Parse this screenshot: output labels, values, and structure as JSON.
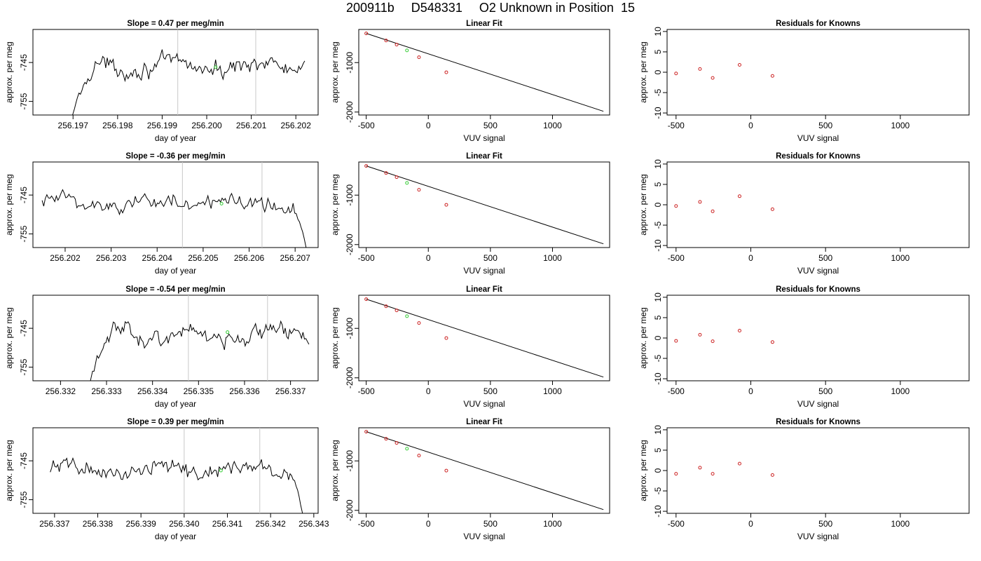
{
  "page_title": {
    "run": "200911b",
    "sample": "D548331",
    "description": "O2 Unknown in Position  15"
  },
  "colors": {
    "trace": "#000000",
    "guide_lines": "#c8c8c8",
    "known_points": "#cc2222",
    "unknown_point": "#33cc33",
    "frame": "#000000"
  },
  "chart_data": [
    {
      "type": "line",
      "panel": "time-series",
      "row": 1,
      "title": "Slope =  0.47  per meg/min",
      "xlabel": "day of year",
      "ylabel": "approx. per meg",
      "xlim": [
        256.1961,
        256.2025
      ],
      "ylim": [
        -758.5,
        -736.5
      ],
      "xticks": [
        256.197,
        256.198,
        256.199,
        256.2,
        256.201,
        256.202
      ],
      "xtick_labels": [
        "256.197",
        "256.198",
        "256.199",
        "256.200",
        "256.201",
        "256.202"
      ],
      "yticks": [
        -755,
        -745
      ],
      "ytick_labels": [
        "-755",
        "-745"
      ],
      "x_start": 256.1969,
      "x_end": 256.2022,
      "n_points": 160,
      "level": -746.0,
      "noise": 2.2,
      "start_dip": -764,
      "guide_lines_x": [
        256.19935,
        256.2011
      ],
      "unknown_point": {
        "x": 256.2002,
        "y": -746.2
      },
      "grid": false,
      "legend": "none"
    },
    {
      "type": "scatter",
      "panel": "linear-fit",
      "row": 1,
      "title": "Linear Fit",
      "xlabel": "VUV signal",
      "ylabel": "approx. per meg",
      "xlim": [
        -560,
        1460
      ],
      "ylim": [
        -2060,
        -330
      ],
      "xticks": [
        -500,
        0,
        500,
        1000
      ],
      "xtick_labels": [
        "-500",
        "0",
        "500",
        "1000"
      ],
      "yticks": [
        -2000,
        -1000
      ],
      "ytick_labels": [
        "-2000",
        "-1000"
      ],
      "known_x": [
        -500,
        -340,
        -255,
        -75,
        145
      ],
      "known_y": [
        -410,
        -553,
        -636,
        -892,
        -1196
      ],
      "unknown_point": {
        "x": -172,
        "y": -754
      },
      "fit_line": {
        "x": [
          -500,
          1410
        ],
        "y": [
          -410,
          -1985
        ]
      },
      "grid": false,
      "legend": "none"
    },
    {
      "type": "scatter",
      "panel": "residuals",
      "row": 1,
      "title": "Residuals for Knowns",
      "xlabel": "VUV signal",
      "ylabel": "approx. per meg",
      "xlim": [
        -560,
        1460
      ],
      "ylim": [
        -10.5,
        10.5
      ],
      "xticks": [
        -500,
        0,
        500,
        1000
      ],
      "xtick_labels": [
        "-500",
        "0",
        "500",
        "1000"
      ],
      "yticks": [
        -10,
        -5,
        0,
        5,
        10
      ],
      "ytick_labels": [
        "-10",
        "-5",
        "0",
        "5",
        "10"
      ],
      "x": [
        -500,
        -340,
        -255,
        -75,
        145
      ],
      "y": [
        -0.3,
        0.8,
        -1.4,
        1.8,
        -0.9
      ],
      "grid": false,
      "legend": "none"
    },
    {
      "type": "line",
      "panel": "time-series",
      "row": 2,
      "title": "Slope =  -0.36  per meg/min",
      "xlabel": "day of year",
      "ylabel": "approx. per meg",
      "xlim": [
        256.2013,
        256.2075
      ],
      "ylim": [
        -758.5,
        -736.5
      ],
      "xticks": [
        256.202,
        256.203,
        256.204,
        256.205,
        256.206,
        256.207
      ],
      "xtick_labels": [
        "256.202",
        "256.203",
        "256.204",
        "256.205",
        "256.206",
        "256.207"
      ],
      "yticks": [
        -755,
        -745
      ],
      "ytick_labels": [
        "-755",
        "-745"
      ],
      "x_start": 256.2015,
      "x_end": 256.2073,
      "n_points": 170,
      "level": -747.0,
      "noise": 2.3,
      "end_dip": -762,
      "guide_lines_x": [
        256.20455,
        256.20628
      ],
      "unknown_point": {
        "x": 256.2054,
        "y": -747.2
      },
      "grid": false,
      "legend": "none"
    },
    {
      "type": "scatter",
      "panel": "linear-fit",
      "row": 2,
      "title": "Linear Fit",
      "xlabel": "VUV signal",
      "ylabel": "approx. per meg",
      "xlim": [
        -560,
        1460
      ],
      "ylim": [
        -2060,
        -330
      ],
      "xticks": [
        -500,
        0,
        500,
        1000
      ],
      "xtick_labels": [
        "-500",
        "0",
        "500",
        "1000"
      ],
      "yticks": [
        -2000,
        -1000
      ],
      "ytick_labels": [
        "-2000",
        "-1000"
      ],
      "known_x": [
        -500,
        -340,
        -255,
        -75,
        145
      ],
      "known_y": [
        -410,
        -553,
        -636,
        -892,
        -1196
      ],
      "unknown_point": {
        "x": -172,
        "y": -754
      },
      "fit_line": {
        "x": [
          -500,
          1410
        ],
        "y": [
          -410,
          -1985
        ]
      },
      "grid": false,
      "legend": "none"
    },
    {
      "type": "scatter",
      "panel": "residuals",
      "row": 2,
      "title": "Residuals for Knowns",
      "xlabel": "VUV signal",
      "ylabel": "approx. per meg",
      "xlim": [
        -560,
        1460
      ],
      "ylim": [
        -10.5,
        10.5
      ],
      "xticks": [
        -500,
        0,
        500,
        1000
      ],
      "xtick_labels": [
        "-500",
        "0",
        "500",
        "1000"
      ],
      "yticks": [
        -10,
        -5,
        0,
        5,
        10
      ],
      "ytick_labels": [
        "-10",
        "-5",
        "0",
        "5",
        "10"
      ],
      "x": [
        -500,
        -340,
        -255,
        -75,
        145
      ],
      "y": [
        -0.3,
        0.7,
        -1.6,
        2.1,
        -1.1
      ],
      "grid": false,
      "legend": "none"
    },
    {
      "type": "line",
      "panel": "time-series",
      "row": 3,
      "title": "Slope =  -0.54  per meg/min",
      "xlabel": "day of year",
      "ylabel": "approx. per meg",
      "xlim": [
        256.3314,
        256.3376
      ],
      "ylim": [
        -758.5,
        -736.5
      ],
      "xticks": [
        256.332,
        256.333,
        256.334,
        256.335,
        256.336,
        256.337
      ],
      "xtick_labels": [
        "256.332",
        "256.333",
        "256.334",
        "256.335",
        "256.336",
        "256.337"
      ],
      "yticks": [
        -755,
        -745
      ],
      "ytick_labels": [
        "-755",
        "-745"
      ],
      "x_start": 256.3326,
      "x_end": 256.3374,
      "n_points": 150,
      "level": -746.5,
      "noise": 2.3,
      "start_dip": -762,
      "guide_lines_x": [
        256.33478,
        256.3365
      ],
      "unknown_point": {
        "x": 256.33563,
        "y": -746.0
      },
      "grid": false,
      "legend": "none"
    },
    {
      "type": "scatter",
      "panel": "linear-fit",
      "row": 3,
      "title": "Linear Fit",
      "xlabel": "VUV signal",
      "ylabel": "approx. per meg",
      "xlim": [
        -560,
        1460
      ],
      "ylim": [
        -2060,
        -330
      ],
      "xticks": [
        -500,
        0,
        500,
        1000
      ],
      "xtick_labels": [
        "-500",
        "0",
        "500",
        "1000"
      ],
      "yticks": [
        -2000,
        -1000
      ],
      "ytick_labels": [
        "-2000",
        "-1000"
      ],
      "known_x": [
        -500,
        -340,
        -255,
        -75,
        145
      ],
      "known_y": [
        -410,
        -553,
        -636,
        -892,
        -1196
      ],
      "unknown_point": {
        "x": -172,
        "y": -754
      },
      "fit_line": {
        "x": [
          -500,
          1410
        ],
        "y": [
          -410,
          -1985
        ]
      },
      "grid": false,
      "legend": "none"
    },
    {
      "type": "scatter",
      "panel": "residuals",
      "row": 3,
      "title": "Residuals for Knowns",
      "xlabel": "VUV signal",
      "ylabel": "approx. per meg",
      "xlim": [
        -560,
        1460
      ],
      "ylim": [
        -10.5,
        10.5
      ],
      "xticks": [
        -500,
        0,
        500,
        1000
      ],
      "xtick_labels": [
        "-500",
        "0",
        "500",
        "1000"
      ],
      "yticks": [
        -10,
        -5,
        0,
        5,
        10
      ],
      "ytick_labels": [
        "-10",
        "-5",
        "0",
        "5",
        "10"
      ],
      "x": [
        -500,
        -340,
        -255,
        -75,
        145
      ],
      "y": [
        -0.7,
        0.8,
        -0.8,
        1.8,
        -1.0
      ],
      "grid": false,
      "legend": "none"
    },
    {
      "type": "line",
      "panel": "time-series",
      "row": 4,
      "title": "Slope =  0.39  per meg/min",
      "xlabel": "day of year",
      "ylabel": "approx. per meg",
      "xlim": [
        256.3365,
        256.3431
      ],
      "ylim": [
        -758.5,
        -736.5
      ],
      "xticks": [
        256.337,
        256.338,
        256.339,
        256.34,
        256.341,
        256.342,
        256.343
      ],
      "xtick_labels": [
        "256.337",
        "256.338",
        "256.339",
        "256.340",
        "256.341",
        "256.342",
        "256.343"
      ],
      "yticks": [
        -755,
        -745
      ],
      "ytick_labels": [
        "-755",
        "-745"
      ],
      "x_start": 256.3369,
      "x_end": 256.3428,
      "n_points": 170,
      "level": -747.3,
      "noise": 2.0,
      "end_dip": -762,
      "guide_lines_x": [
        256.34,
        256.34175
      ],
      "unknown_point": {
        "x": 256.34085,
        "y": -747.5
      },
      "grid": false,
      "legend": "none"
    },
    {
      "type": "scatter",
      "panel": "linear-fit",
      "row": 4,
      "title": "Linear Fit",
      "xlabel": "VUV signal",
      "ylabel": "approx. per meg",
      "xlim": [
        -560,
        1460
      ],
      "ylim": [
        -2060,
        -330
      ],
      "xticks": [
        -500,
        0,
        500,
        1000
      ],
      "xtick_labels": [
        "-500",
        "0",
        "500",
        "1000"
      ],
      "yticks": [
        -2000,
        -1000
      ],
      "ytick_labels": [
        "-2000",
        "-1000"
      ],
      "known_x": [
        -500,
        -340,
        -255,
        -75,
        145
      ],
      "known_y": [
        -410,
        -553,
        -636,
        -892,
        -1196
      ],
      "unknown_point": {
        "x": -172,
        "y": -754
      },
      "fit_line": {
        "x": [
          -500,
          1410
        ],
        "y": [
          -410,
          -1985
        ]
      },
      "grid": false,
      "legend": "none"
    },
    {
      "type": "scatter",
      "panel": "residuals",
      "row": 4,
      "title": "Residuals for Knowns",
      "xlabel": "VUV signal",
      "ylabel": "approx. per meg",
      "xlim": [
        -560,
        1460
      ],
      "ylim": [
        -10.5,
        10.5
      ],
      "xticks": [
        -500,
        0,
        500,
        1000
      ],
      "xtick_labels": [
        "-500",
        "0",
        "500",
        "1000"
      ],
      "yticks": [
        -10,
        -5,
        0,
        5,
        10
      ],
      "ytick_labels": [
        "-10",
        "-5",
        "0",
        "5",
        "10"
      ],
      "x": [
        -500,
        -340,
        -255,
        -75,
        145
      ],
      "y": [
        -0.8,
        0.7,
        -0.8,
        1.7,
        -1.1
      ],
      "grid": false,
      "legend": "none"
    }
  ]
}
